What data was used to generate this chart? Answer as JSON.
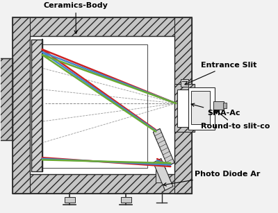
{
  "bg_color": "#f2f2f2",
  "beam_colors": [
    "#cc2222",
    "#4488cc",
    "#6aaa33"
  ],
  "line_color": "#2a2a2a",
  "hatch_color": "#888888",
  "figsize": [
    4.0,
    3.07
  ],
  "dpi": 100,
  "labels": {
    "ceramics_body": "Ceramics-Body",
    "entrance_slit": "Entrance Slit",
    "sma": "SMA-Ac",
    "round_to_slit": "Round-to slit-co",
    "photo_diode": "Photo Diode Ar"
  }
}
